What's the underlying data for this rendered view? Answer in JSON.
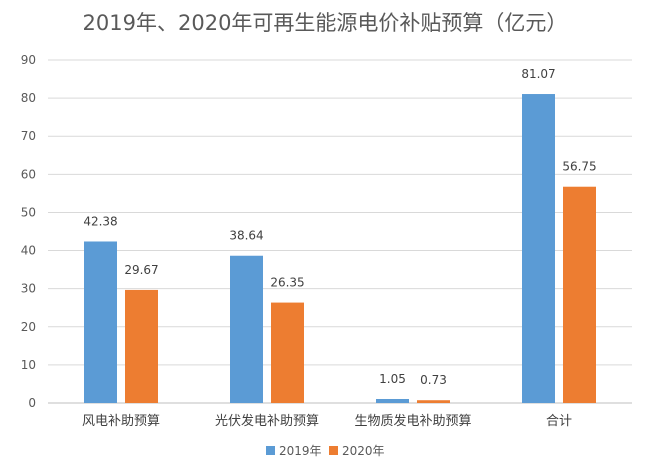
{
  "chart_data": {
    "type": "bar",
    "title": "2019年、2020年可再生能源电价补贴预算（亿元）",
    "xlabel": "",
    "ylabel": "",
    "categories": [
      "风电补助预算",
      "光伏发电补助预算",
      "生物质发电补助预算",
      "合计"
    ],
    "series": [
      {
        "name": "2019年",
        "values": [
          42.38,
          38.64,
          1.05,
          81.07
        ],
        "labels": [
          "42.38",
          "38.64",
          "1.05",
          "81.07"
        ],
        "color": "#5B9BD5"
      },
      {
        "name": "2020年",
        "values": [
          29.67,
          26.35,
          0.73,
          56.75
        ],
        "labels": [
          "29.67",
          "26.35",
          "0.73",
          "56.75"
        ],
        "color": "#ED7D31"
      }
    ],
    "ylim": [
      0,
      90
    ],
    "yticks": [
      "0",
      "10",
      "20",
      "30",
      "40",
      "50",
      "60",
      "70",
      "80",
      "90"
    ],
    "grid": true,
    "legend_position": "bottom"
  }
}
